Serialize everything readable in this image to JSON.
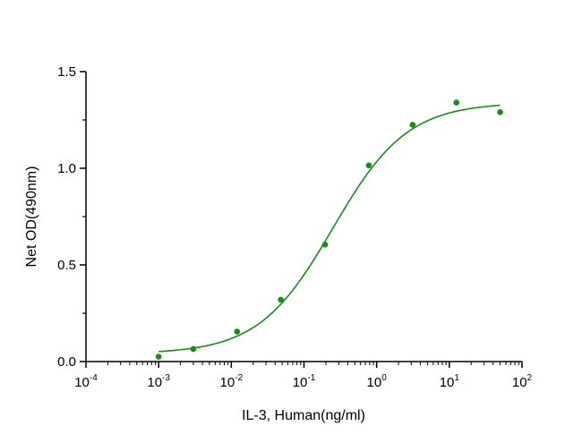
{
  "chart_data": {
    "type": "scatter",
    "title": "",
    "xlabel": "IL-3, Human(ng/ml)",
    "ylabel": "Net OD(490nm)",
    "xscale": "log",
    "xlim": [
      0.0001,
      100
    ],
    "ylim": [
      0,
      1.5
    ],
    "x_ticks": [
      {
        "base": "10",
        "exp": "-4",
        "value": 0.0001
      },
      {
        "base": "10",
        "exp": "-3",
        "value": 0.001
      },
      {
        "base": "10",
        "exp": "-2",
        "value": 0.01
      },
      {
        "base": "10",
        "exp": "-1",
        "value": 0.1
      },
      {
        "base": "10",
        "exp": "0",
        "value": 1
      },
      {
        "base": "10",
        "exp": "1",
        "value": 10
      },
      {
        "base": "10",
        "exp": "2",
        "value": 100
      }
    ],
    "y_ticks": [
      {
        "label": "0.0",
        "value": 0
      },
      {
        "label": "0.5",
        "value": 0.5
      },
      {
        "label": "1.0",
        "value": 1.0
      },
      {
        "label": "1.5",
        "value": 1.5
      }
    ],
    "grid": false,
    "color": "#1a8a1a",
    "series": [
      {
        "x": [
          0.001,
          0.003,
          0.012,
          0.048,
          0.195,
          0.78,
          3.125,
          12.5,
          50
        ],
        "y": [
          0.025,
          0.065,
          0.155,
          0.32,
          0.605,
          1.015,
          1.225,
          1.34,
          1.29
        ]
      }
    ],
    "fit": {
      "type": "4PL",
      "bottom": 0.04,
      "top": 1.34,
      "ec50": 0.25,
      "hill": 0.85,
      "x_range": [
        0.001,
        50
      ]
    }
  }
}
